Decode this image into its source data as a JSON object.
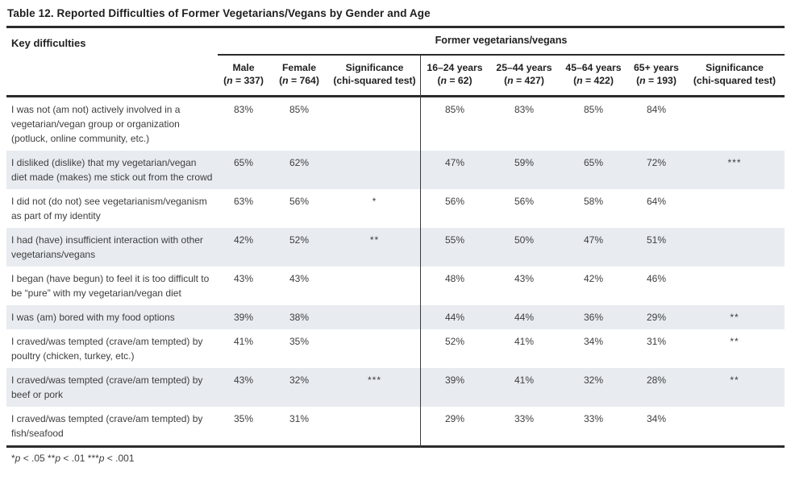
{
  "title": "Table 12. Reported Difficulties of Former Vegetarians/Vegans by Gender and Age",
  "header": {
    "key_difficulties": "Key difficulties",
    "group_label": "Former vegetarians/vegans",
    "columns": [
      {
        "label": "Male",
        "sub": "(n = 337)"
      },
      {
        "label": "Female",
        "sub": "(n = 764)"
      },
      {
        "label": "Significance",
        "sub": "(chi-squared test)"
      },
      {
        "label": "16–24 years",
        "sub": "(n = 62)"
      },
      {
        "label": "25–44 years",
        "sub": "(n = 427)"
      },
      {
        "label": "45–64 years",
        "sub": "(n = 422)"
      },
      {
        "label": "65+ years",
        "sub": "(n = 193)"
      },
      {
        "label": "Significance",
        "sub": "(chi-squared test)"
      }
    ]
  },
  "colors": {
    "shaded_row": "#e8ecf0",
    "rule": "#2b2b2d",
    "text": "#3d3d3f"
  },
  "rows": [
    {
      "label": "I was not (am not) actively involved in a vegetarian/vegan group or organization (potluck, online community, etc.)",
      "male": "83%",
      "female": "85%",
      "sig_gender": "",
      "age_16_24": "85%",
      "age_25_44": "83%",
      "age_45_64": "85%",
      "age_65_plus": "84%",
      "sig_age": ""
    },
    {
      "label": "I disliked (dislike) that my vegetarian/vegan diet made (makes) me stick out from the crowd",
      "male": "65%",
      "female": "62%",
      "sig_gender": "",
      "age_16_24": "47%",
      "age_25_44": "59%",
      "age_45_64": "65%",
      "age_65_plus": "72%",
      "sig_age": "***"
    },
    {
      "label": "I did not (do not) see vegetarianism/veganism as part of my identity",
      "male": "63%",
      "female": "56%",
      "sig_gender": "*",
      "age_16_24": "56%",
      "age_25_44": "56%",
      "age_45_64": "58%",
      "age_65_plus": "64%",
      "sig_age": ""
    },
    {
      "label": "I had (have) insufficient interaction with other vegetarians/vegans",
      "male": "42%",
      "female": "52%",
      "sig_gender": "**",
      "age_16_24": "55%",
      "age_25_44": "50%",
      "age_45_64": "47%",
      "age_65_plus": "51%",
      "sig_age": ""
    },
    {
      "label": "I began (have begun) to feel it is too difficult to be “pure” with my vegetarian/vegan diet",
      "male": "43%",
      "female": "43%",
      "sig_gender": "",
      "age_16_24": "48%",
      "age_25_44": "43%",
      "age_45_64": "42%",
      "age_65_plus": "46%",
      "sig_age": ""
    },
    {
      "label": "I was (am) bored with my food options",
      "male": "39%",
      "female": "38%",
      "sig_gender": "",
      "age_16_24": "44%",
      "age_25_44": "44%",
      "age_45_64": "36%",
      "age_65_plus": "29%",
      "sig_age": "**"
    },
    {
      "label": "I craved/was tempted (crave/am tempted) by poultry (chicken, turkey, etc.)",
      "male": "41%",
      "female": "35%",
      "sig_gender": "",
      "age_16_24": "52%",
      "age_25_44": "41%",
      "age_45_64": "34%",
      "age_65_plus": "31%",
      "sig_age": "**"
    },
    {
      "label": "I craved/was tempted (crave/am tempted) by beef or pork",
      "male": "43%",
      "female": "32%",
      "sig_gender": "***",
      "age_16_24": "39%",
      "age_25_44": "41%",
      "age_45_64": "32%",
      "age_65_plus": "28%",
      "sig_age": "**"
    },
    {
      "label": "I craved/was tempted (crave/am tempted) by fish/seafood",
      "male": "35%",
      "female": "31%",
      "sig_gender": "",
      "age_16_24": "29%",
      "age_25_44": "33%",
      "age_45_64": "33%",
      "age_65_plus": "34%",
      "sig_age": ""
    }
  ],
  "footnote": "*p < .05 **p < .01 ***p < .001"
}
